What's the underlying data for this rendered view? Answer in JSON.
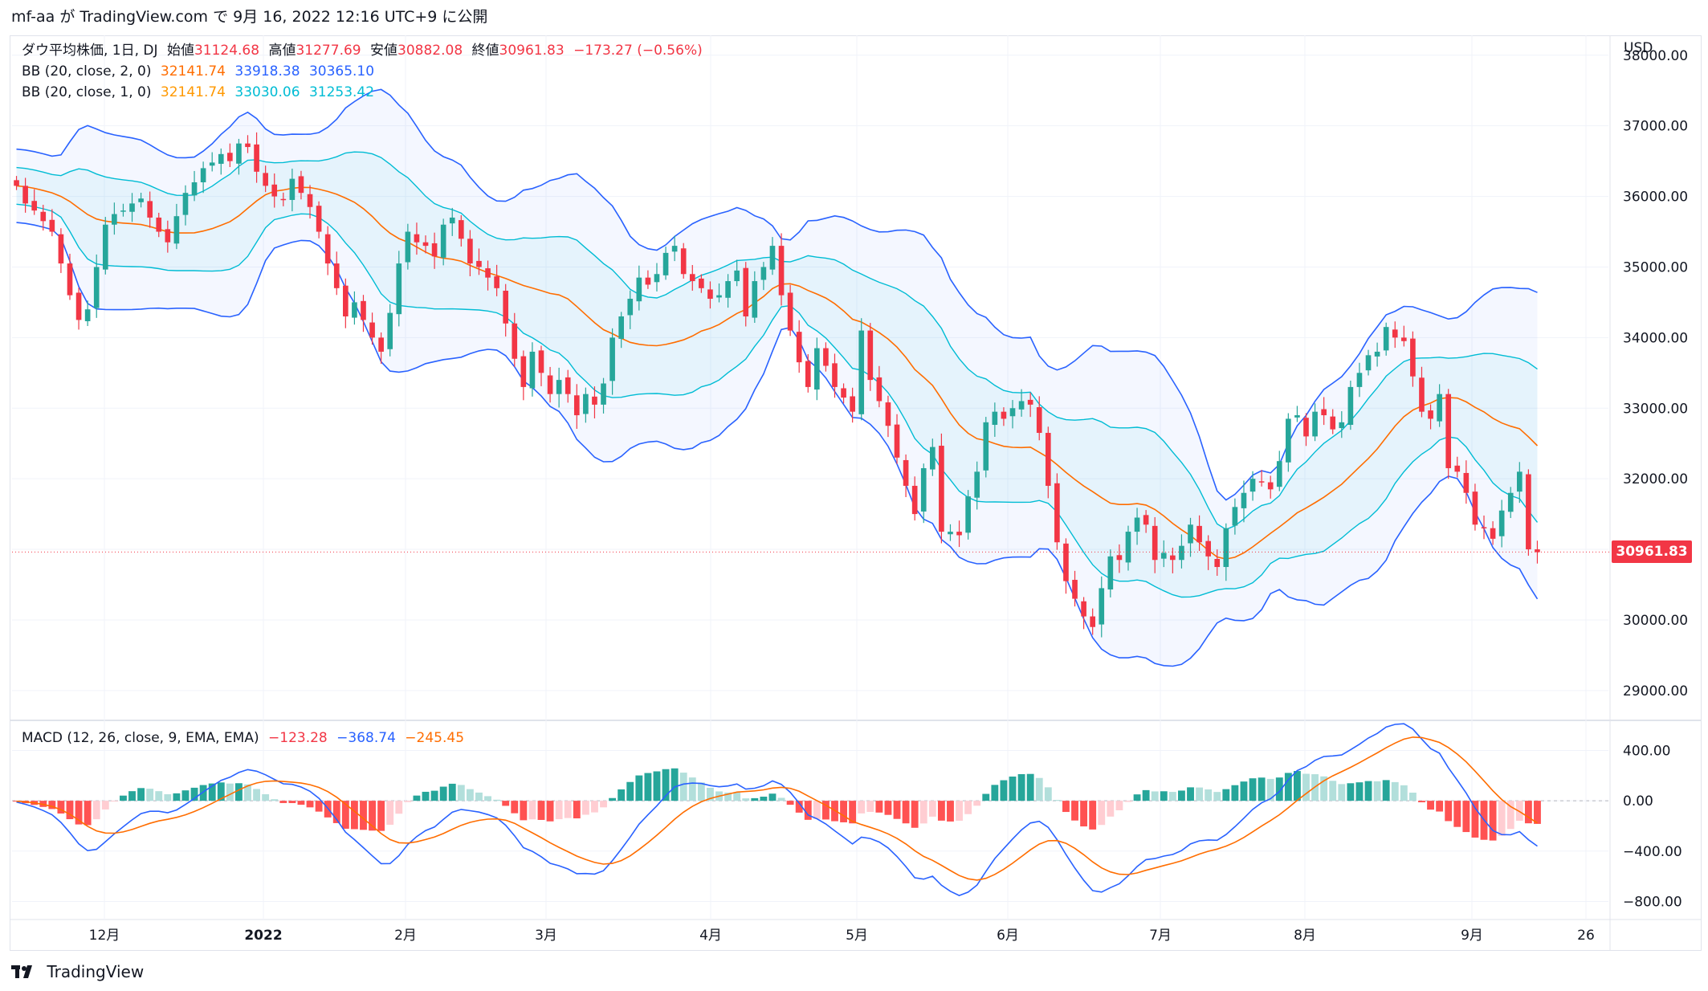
{
  "header": {
    "text": "mf-aa が TradingView.com で 9月 16, 2022 12:16 UTC+9 に公開"
  },
  "legend": {
    "symbol": "ダウ平均株価, 1日, DJ",
    "open_label": "始値",
    "open": "31124.68",
    "high_label": "高値",
    "high": "31277.69",
    "low_label": "安値",
    "low": "30882.08",
    "close_label": "終値",
    "close": "30961.83",
    "change": "−173.27 (−0.56%)",
    "bb2_label": "BB (20, close, 2, 0)",
    "bb2_basis": "32141.74",
    "bb2_upper": "33918.38",
    "bb2_lower": "30365.10",
    "bb1_label": "BB (20, close, 1, 0)",
    "bb1_basis": "32141.74",
    "bb1_upper": "33030.06",
    "bb1_lower": "31253.42",
    "macd_label": "MACD (12, 26, close, 9, EMA, EMA)",
    "macd_hist": "−123.28",
    "macd_line": "−368.74",
    "macd_signal": "−245.45"
  },
  "currency": "USD",
  "last_price_tag": "30961.83",
  "footer": {
    "brand": "TradingView"
  },
  "colors": {
    "up": "#26a69a",
    "down": "#f23645",
    "bb2": "#2962ff",
    "bb1": "#00bcd4",
    "basis": "#ff6d00",
    "macd": "#2962ff",
    "signal": "#ff6d00",
    "hist_up_strong": "#26a69a",
    "hist_up_weak": "#b2dfdb",
    "hist_down_strong": "#ff5252",
    "hist_down_weak": "#ffcdd2"
  },
  "chart_data": [
    {
      "type": "candlestick",
      "series": [
        {
          "name": "ダウ平均株価, 1日, DJ",
          "points_close": [
            36150,
            35900,
            35800,
            35650,
            35500,
            35050,
            34600,
            34250,
            34400,
            35000,
            35600,
            35750,
            35800,
            35900,
            35970,
            35700,
            35500,
            35350,
            35720,
            36050,
            36200,
            36400,
            36480,
            36600,
            36500,
            36750,
            36700,
            36350,
            36150,
            36000,
            35950,
            36250,
            36050,
            35850,
            35500,
            35050,
            34700,
            34300,
            34500,
            34250,
            34000,
            33800,
            34350,
            35050,
            35500,
            35350,
            35300,
            35150,
            35600,
            35700,
            35400,
            35050,
            35000,
            34850,
            34700,
            34200,
            33700,
            33300,
            33800,
            33500,
            33200,
            33400,
            33200,
            32900,
            33200,
            33050,
            33350,
            34000,
            34300,
            34550,
            34850,
            34750,
            34900,
            35200,
            35300,
            34900,
            34800,
            34700,
            34550,
            34600,
            34800,
            34950,
            34300,
            34800,
            35000,
            35300,
            34600,
            34100,
            33650,
            33300,
            33850,
            33600,
            33300,
            33150,
            32950,
            34100,
            33400,
            33100,
            32750,
            32300,
            31900,
            31500,
            32150,
            32450,
            31250,
            31250,
            31200,
            31750,
            32100,
            32800,
            32950,
            32850,
            33000,
            33100,
            33050,
            32650,
            31900,
            31100,
            30550,
            30300,
            30050,
            29900,
            30450,
            30900,
            30850,
            31250,
            31450,
            31350,
            30850,
            30950,
            30850,
            31050,
            31350,
            31100,
            30900,
            30750,
            31300,
            31600,
            31800,
            32000,
            31950,
            31850,
            32250,
            32850,
            32900,
            32600,
            32950,
            32900,
            32700,
            32800,
            33300,
            33500,
            33750,
            33800,
            34150,
            34000,
            33950,
            33450,
            32950,
            32850,
            33200,
            32150,
            32100,
            31800,
            31350,
            31300,
            31150,
            31550,
            31800,
            32100,
            31000,
            30960
          ]
        }
      ],
      "bollinger": [
        {
          "name": "BB (20, close, 2, 0)",
          "upper_last": 33918.38,
          "basis_last": 32141.74,
          "lower_last": 30365.1
        },
        {
          "name": "BB (20, close, 1, 0)",
          "upper_last": 33030.06,
          "basis_last": 32141.74,
          "lower_last": 31253.42
        }
      ],
      "y_ticks": [
        29000,
        30000,
        31000,
        32000,
        33000,
        34000,
        35000,
        36000,
        37000,
        38000
      ],
      "ylim": [
        28600,
        38100
      ],
      "x_ticks": [
        "12月",
        "2022",
        "2月",
        "3月",
        "4月",
        "5月",
        "6月",
        "7月",
        "8月",
        "9月",
        "26"
      ],
      "last_price": 30961.83
    },
    {
      "type": "bar",
      "name": "MACD (12, 26, close, 9, EMA, EMA)",
      "macd_last": -368.74,
      "signal_last": -245.45,
      "histogram_last": -123.28,
      "y_ticks": [
        -800,
        -400,
        0,
        400
      ],
      "ylim": [
        -880,
        620
      ]
    }
  ]
}
